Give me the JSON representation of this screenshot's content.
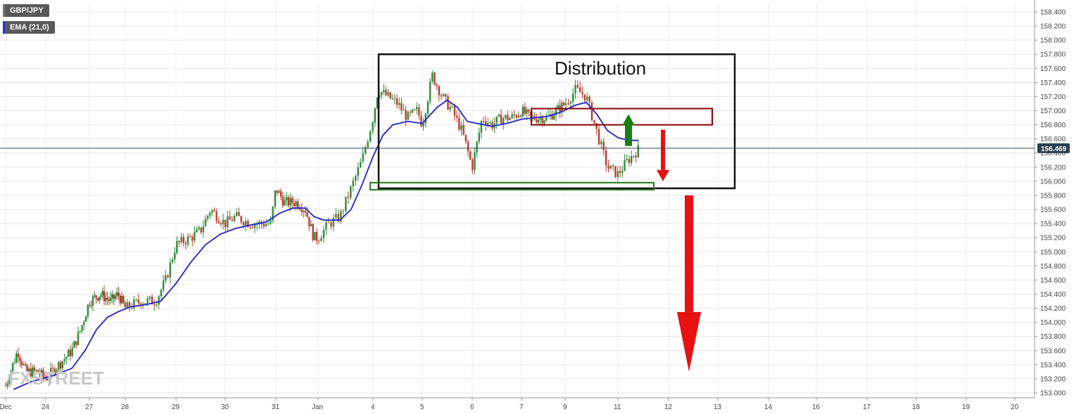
{
  "legend": {
    "symbol": "GBP/JPY",
    "indicator": "EMA (21,0)",
    "indicator_color": "#1f3bd6"
  },
  "watermark": "FXSTREET",
  "current_price": "156.469",
  "annotation": {
    "title": "Distribution"
  },
  "colors": {
    "up": "#2e8b3a",
    "down": "#c0392b",
    "ema": "#1f22d1",
    "resistance_box": "#8b0000",
    "support_box": "#2a7a1a",
    "arrow_up": "#1a7f10",
    "arrow_down": "#e81010",
    "price_tag": "#2c3e50"
  },
  "chart_data": {
    "type": "candlestick",
    "title": "",
    "xlabel": "",
    "ylabel": "",
    "ylim": [
      153.0,
      158.4
    ],
    "y_ticks": [
      "158.400",
      "158.200",
      "158.000",
      "157.800",
      "157.600",
      "157.400",
      "157.200",
      "157.000",
      "156.800",
      "156.600",
      "156.400",
      "156.200",
      "156.000",
      "155.800",
      "155.600",
      "155.400",
      "155.200",
      "155.000",
      "154.800",
      "154.600",
      "154.400",
      "154.200",
      "154.000",
      "153.800",
      "153.600",
      "153.400",
      "153.200",
      "153.000"
    ],
    "x_ticks": [
      "Dec",
      "24",
      "27",
      "28",
      "29",
      "30",
      "31",
      "Jan",
      "4",
      "5",
      "6",
      "7",
      "9",
      "11",
      "12",
      "13",
      "14",
      "16",
      "17",
      "18",
      "19",
      "20"
    ],
    "ema_period": "21",
    "close_path": [
      {
        "x": 0.0,
        "y": 153.1
      },
      {
        "x": 0.3,
        "y": 153.6
      },
      {
        "x": 0.5,
        "y": 153.3
      },
      {
        "x": 0.8,
        "y": 153.3
      },
      {
        "x": 1.0,
        "y": 153.2
      },
      {
        "x": 1.3,
        "y": 153.4
      },
      {
        "x": 1.6,
        "y": 153.6
      },
      {
        "x": 1.8,
        "y": 153.9
      },
      {
        "x": 2.0,
        "y": 154.3
      },
      {
        "x": 2.3,
        "y": 154.4
      },
      {
        "x": 2.6,
        "y": 154.3
      },
      {
        "x": 2.8,
        "y": 154.4
      },
      {
        "x": 3.0,
        "y": 154.2
      },
      {
        "x": 3.3,
        "y": 154.3
      },
      {
        "x": 3.6,
        "y": 154.3
      },
      {
        "x": 3.8,
        "y": 154.6
      },
      {
        "x": 4.0,
        "y": 155.1
      },
      {
        "x": 4.3,
        "y": 155.2
      },
      {
        "x": 4.5,
        "y": 155.3
      },
      {
        "x": 4.7,
        "y": 155.6
      },
      {
        "x": 5.0,
        "y": 155.4
      },
      {
        "x": 5.2,
        "y": 155.5
      },
      {
        "x": 5.5,
        "y": 155.4
      },
      {
        "x": 5.7,
        "y": 155.4
      },
      {
        "x": 5.9,
        "y": 155.4
      },
      {
        "x": 6.0,
        "y": 155.9
      },
      {
        "x": 6.2,
        "y": 155.7
      },
      {
        "x": 6.5,
        "y": 155.7
      },
      {
        "x": 6.7,
        "y": 155.6
      },
      {
        "x": 6.9,
        "y": 155.2
      },
      {
        "x": 7.0,
        "y": 155.2
      },
      {
        "x": 7.2,
        "y": 155.4
      },
      {
        "x": 7.4,
        "y": 155.5
      },
      {
        "x": 7.6,
        "y": 155.9
      },
      {
        "x": 7.8,
        "y": 156.3
      },
      {
        "x": 8.0,
        "y": 156.9
      },
      {
        "x": 8.1,
        "y": 157.3
      },
      {
        "x": 8.3,
        "y": 157.2
      },
      {
        "x": 8.5,
        "y": 157.1
      },
      {
        "x": 8.7,
        "y": 156.9
      },
      {
        "x": 8.9,
        "y": 157.0
      },
      {
        "x": 9.0,
        "y": 156.8
      },
      {
        "x": 9.2,
        "y": 157.5
      },
      {
        "x": 9.4,
        "y": 157.2
      },
      {
        "x": 9.6,
        "y": 157.0
      },
      {
        "x": 9.8,
        "y": 156.7
      },
      {
        "x": 10.0,
        "y": 156.2
      },
      {
        "x": 10.2,
        "y": 156.9
      },
      {
        "x": 10.4,
        "y": 156.8
      },
      {
        "x": 10.6,
        "y": 156.9
      },
      {
        "x": 10.8,
        "y": 156.9
      },
      {
        "x": 11.0,
        "y": 157.0
      },
      {
        "x": 11.2,
        "y": 156.9
      },
      {
        "x": 11.4,
        "y": 156.9
      },
      {
        "x": 11.6,
        "y": 156.9
      },
      {
        "x": 11.8,
        "y": 157.0
      },
      {
        "x": 12.0,
        "y": 157.1
      },
      {
        "x": 12.2,
        "y": 157.3
      },
      {
        "x": 12.4,
        "y": 157.2
      },
      {
        "x": 12.6,
        "y": 156.7
      },
      {
        "x": 12.8,
        "y": 156.2
      },
      {
        "x": 13.0,
        "y": 156.1
      },
      {
        "x": 13.2,
        "y": 156.3
      },
      {
        "x": 13.4,
        "y": 156.45
      }
    ],
    "ema_path": [
      {
        "x": 0.2,
        "y": 153.05
      },
      {
        "x": 0.6,
        "y": 153.15
      },
      {
        "x": 0.9,
        "y": 153.2
      },
      {
        "x": 1.2,
        "y": 153.25
      },
      {
        "x": 1.6,
        "y": 153.35
      },
      {
        "x": 1.9,
        "y": 153.6
      },
      {
        "x": 2.2,
        "y": 153.9
      },
      {
        "x": 2.5,
        "y": 154.07
      },
      {
        "x": 2.8,
        "y": 154.15
      },
      {
        "x": 3.1,
        "y": 154.22
      },
      {
        "x": 3.4,
        "y": 154.25
      },
      {
        "x": 3.7,
        "y": 154.3
      },
      {
        "x": 4.0,
        "y": 154.55
      },
      {
        "x": 4.3,
        "y": 154.85
      },
      {
        "x": 4.6,
        "y": 155.1
      },
      {
        "x": 4.9,
        "y": 155.25
      },
      {
        "x": 5.2,
        "y": 155.33
      },
      {
        "x": 5.5,
        "y": 155.38
      },
      {
        "x": 5.8,
        "y": 155.42
      },
      {
        "x": 6.1,
        "y": 155.55
      },
      {
        "x": 6.4,
        "y": 155.62
      },
      {
        "x": 6.7,
        "y": 155.62
      },
      {
        "x": 6.9,
        "y": 155.5
      },
      {
        "x": 7.1,
        "y": 155.45
      },
      {
        "x": 7.4,
        "y": 155.45
      },
      {
        "x": 7.6,
        "y": 155.6
      },
      {
        "x": 7.8,
        "y": 155.95
      },
      {
        "x": 8.0,
        "y": 156.35
      },
      {
        "x": 8.2,
        "y": 156.65
      },
      {
        "x": 8.4,
        "y": 156.8
      },
      {
        "x": 8.7,
        "y": 156.85
      },
      {
        "x": 9.0,
        "y": 156.82
      },
      {
        "x": 9.3,
        "y": 157.05
      },
      {
        "x": 9.5,
        "y": 157.15
      },
      {
        "x": 9.7,
        "y": 157.05
      },
      {
        "x": 9.9,
        "y": 156.85
      },
      {
        "x": 10.1,
        "y": 156.82
      },
      {
        "x": 10.4,
        "y": 156.78
      },
      {
        "x": 10.7,
        "y": 156.82
      },
      {
        "x": 11.0,
        "y": 156.88
      },
      {
        "x": 11.3,
        "y": 156.9
      },
      {
        "x": 11.6,
        "y": 156.92
      },
      {
        "x": 11.9,
        "y": 156.98
      },
      {
        "x": 12.2,
        "y": 157.08
      },
      {
        "x": 12.4,
        "y": 157.12
      },
      {
        "x": 12.6,
        "y": 156.95
      },
      {
        "x": 12.8,
        "y": 156.72
      },
      {
        "x": 13.0,
        "y": 156.62
      },
      {
        "x": 13.2,
        "y": 156.58
      },
      {
        "x": 13.4,
        "y": 156.58
      }
    ],
    "zones": [
      {
        "name": "distribution",
        "x0": 7.7,
        "x1": 15.0,
        "y0": 155.9,
        "y1": 157.8
      },
      {
        "name": "resistance",
        "x0": 11.3,
        "x1": 15.0,
        "y0": 156.8,
        "y1": 157.03
      },
      {
        "name": "support",
        "x0": 7.5,
        "x1": 13.9,
        "y0": 155.88,
        "y1": 155.98
      }
    ],
    "arrows": [
      {
        "name": "small-up",
        "x": 13.3,
        "y_from": 156.5,
        "y_to": 156.95
      },
      {
        "name": "small-down",
        "x": 14.1,
        "y_from": 156.73,
        "y_to": 156.0
      },
      {
        "name": "large-down",
        "x": 14.6,
        "y_from": 155.8,
        "y_to": 153.3
      }
    ]
  }
}
